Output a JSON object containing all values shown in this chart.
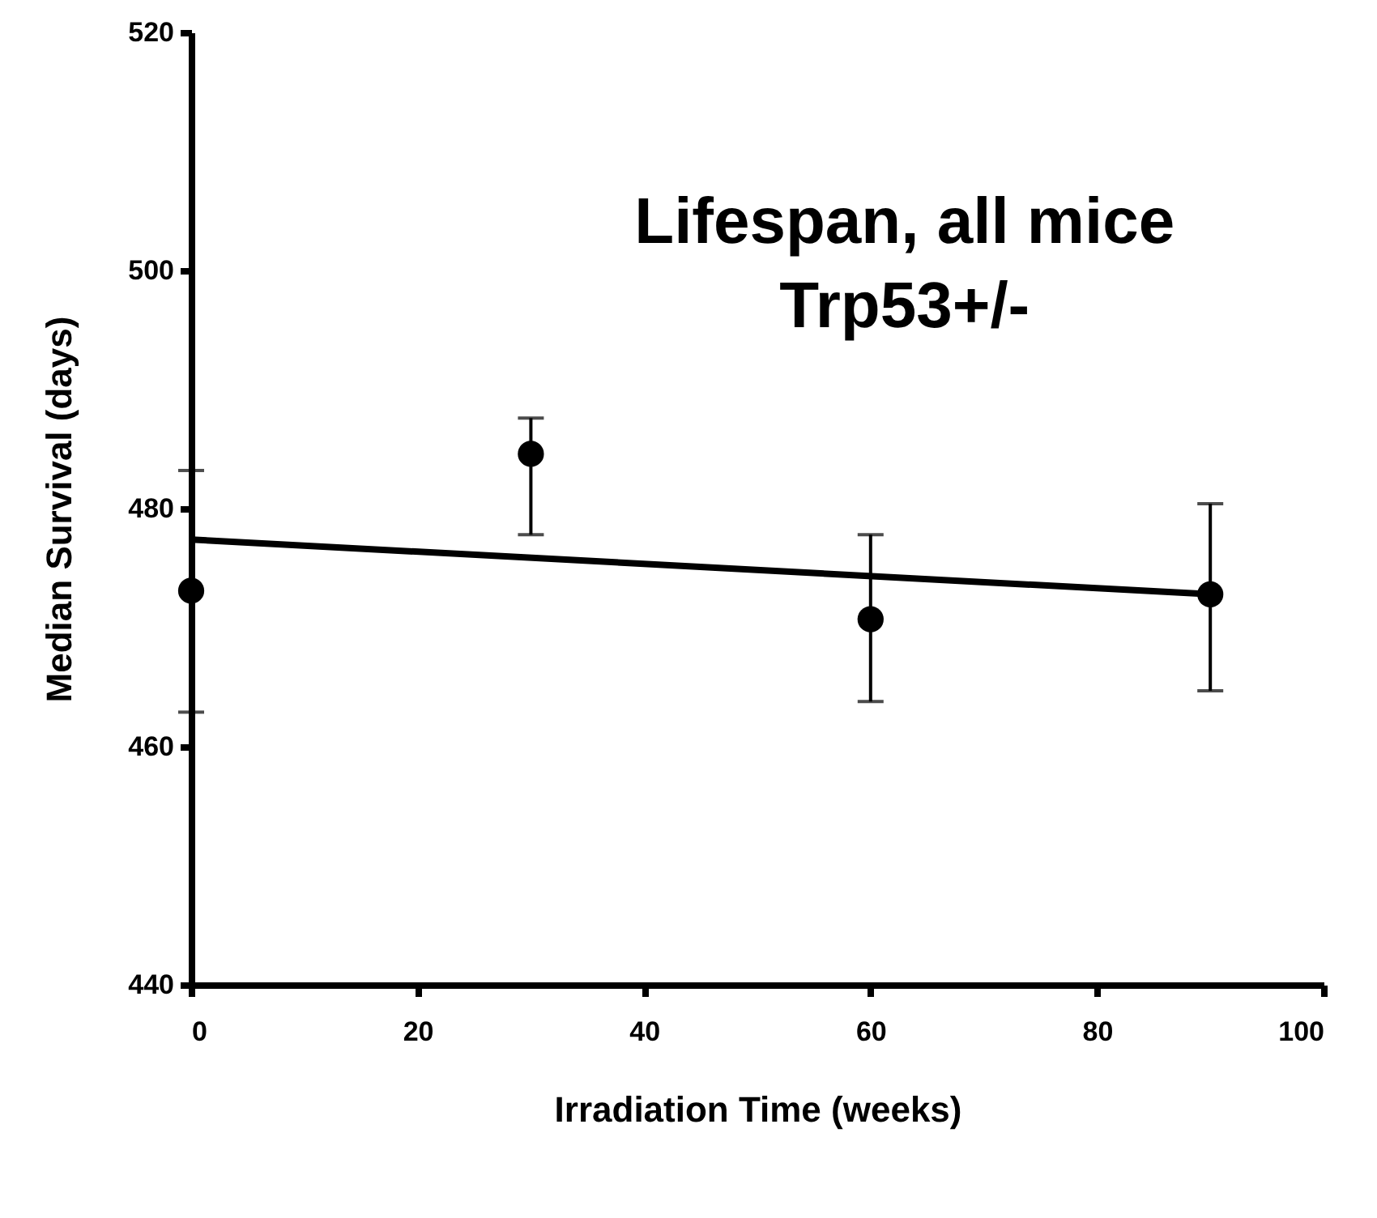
{
  "chart_data": {
    "type": "scatter",
    "xlabel": "Irradiation Time (weeks)",
    "ylabel": "Median Survival (days)",
    "annotations": [
      "Lifespan, all mice",
      "Trp53+/-"
    ],
    "xlim": [
      0,
      100
    ],
    "xticks": [
      0,
      20,
      40,
      60,
      80,
      100
    ],
    "ylim": [
      440,
      520
    ],
    "yticks": [
      440,
      460,
      480,
      500,
      520
    ],
    "grid": false,
    "series": [
      {
        "color": "#000000",
        "marker": "circle",
        "x": [
          0,
          30,
          60,
          90
        ],
        "values": [
          473.1,
          484.6,
          470.7,
          472.8
        ],
        "errors": [
          [
            462.9,
            483.2
          ],
          [
            477.8,
            487.6
          ],
          [
            463.8,
            477.8
          ],
          [
            464.7,
            480.4
          ]
        ]
      },
      {
        "type": "line",
        "color": "#000000",
        "line_style": "solid",
        "marker": "none",
        "x": [
          0,
          90
        ],
        "values": [
          477.4,
          472.8
        ]
      }
    ]
  }
}
